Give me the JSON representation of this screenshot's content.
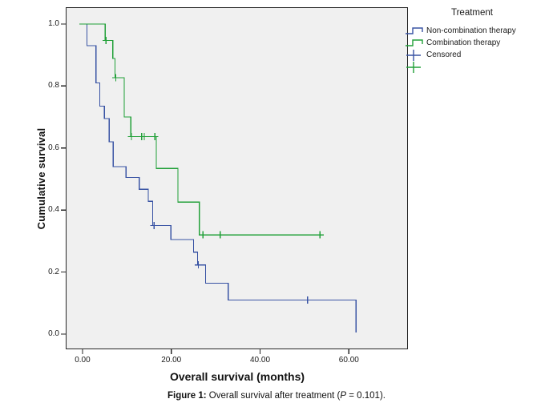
{
  "figure": {
    "caption": {
      "figure_label": "Figure 1:",
      "text_before_p": " Overall survival after treatment (",
      "p_symbol": "P",
      "text_after_p": " = 0.101)."
    }
  },
  "legend": {
    "title": "Treatment",
    "items": [
      {
        "label": "Non-combination therapy",
        "glyph": "step-line",
        "color": "#3953A4"
      },
      {
        "label": "Combination therapy",
        "glyph": "step-line",
        "color": "#21A038"
      },
      {
        "label": "Censored",
        "glyph": "plus-cross",
        "color": "#3953A4"
      },
      {
        "label": "",
        "glyph": "plus-cross",
        "color": "#21A038"
      }
    ]
  },
  "chart_data": {
    "type": "line",
    "subtype": "kaplan-meier-step",
    "title": "",
    "xlabel": "Overall survival (months)",
    "ylabel": "Cumulative survival",
    "xlim": [
      -3.78,
      73.3
    ],
    "ylim": [
      -0.049,
      1.054
    ],
    "grid": false,
    "plot_background": "#F0F0F0",
    "frame_color": "#262626",
    "legend_position": "top-right-outside",
    "x_ticks": {
      "values": [
        0,
        20,
        40,
        60
      ],
      "labels": [
        "0.00",
        "20.00",
        "40.00",
        "60.00"
      ]
    },
    "y_ticks": {
      "values": [
        0.0,
        0.2,
        0.4,
        0.6,
        0.8,
        1.0
      ],
      "labels": [
        "0.0",
        "0.2",
        "0.4",
        "0.6",
        "0.8",
        "1.0"
      ]
    },
    "series": [
      {
        "name": "Non-combination therapy",
        "color": "#3953A4",
        "steps": [
          [
            0,
            1.0
          ],
          [
            1,
            0.93
          ],
          [
            3,
            0.81
          ],
          [
            3.9,
            0.735
          ],
          [
            4.9,
            0.695
          ],
          [
            6,
            0.62
          ],
          [
            6.9,
            0.54
          ],
          [
            9.8,
            0.505
          ],
          [
            12.8,
            0.467
          ],
          [
            14.8,
            0.428
          ],
          [
            15.8,
            0.35
          ],
          [
            19.9,
            0.305
          ],
          [
            25.0,
            0.264
          ],
          [
            25.9,
            0.223
          ],
          [
            27.7,
            0.164
          ],
          [
            32.8,
            0.11
          ],
          [
            61.6,
            0.005
          ]
        ],
        "tail_x": null,
        "censored": [
          [
            16.1,
            0.35
          ],
          [
            26.1,
            0.223
          ],
          [
            50.7,
            0.11
          ]
        ]
      },
      {
        "name": "Combination therapy",
        "color": "#21A038",
        "steps": [
          [
            -0.7,
            1.0
          ],
          [
            5.1,
            0.947
          ],
          [
            6.8,
            0.889
          ],
          [
            7.3,
            0.827
          ],
          [
            9.4,
            0.7
          ],
          [
            10.9,
            0.637
          ],
          [
            16.6,
            0.534
          ],
          [
            21.5,
            0.426
          ],
          [
            26.3,
            0.32
          ]
        ],
        "tail_x": 53.5,
        "censored": [
          [
            5.3,
            0.947
          ],
          [
            7.5,
            0.827
          ],
          [
            11.0,
            0.637
          ],
          [
            13.3,
            0.637
          ],
          [
            13.9,
            0.637
          ],
          [
            16.3,
            0.637
          ],
          [
            27.1,
            0.32
          ],
          [
            31.0,
            0.32
          ],
          [
            53.5,
            0.32
          ]
        ]
      }
    ]
  }
}
